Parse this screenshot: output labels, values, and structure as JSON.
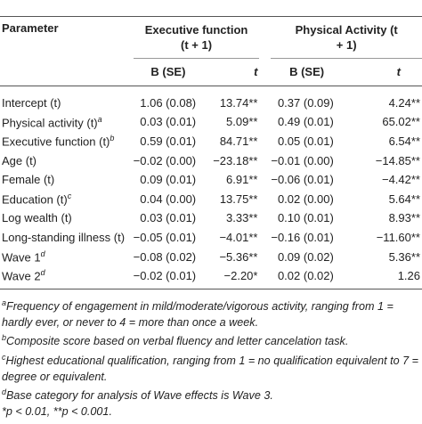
{
  "table": {
    "header": {
      "parameter": "Parameter",
      "groups": [
        "Executive function (t + 1)",
        "Physical Activity (t + 1)"
      ],
      "subcolumns": [
        "B (SE)",
        "t",
        "B (SE)",
        "t"
      ]
    },
    "rows": [
      {
        "label": "Intercept (t)",
        "note": null,
        "cells": [
          "1.06 (0.08)",
          "13.74**",
          "0.37 (0.09)",
          "4.24**"
        ]
      },
      {
        "label": "Physical activity (t)",
        "note": "a",
        "cells": [
          "0.03 (0.01)",
          "5.09**",
          "0.49 (0.01)",
          "65.02**"
        ]
      },
      {
        "label": "Executive function (t)",
        "note": "b",
        "cells": [
          "0.59 (0.01)",
          "84.71**",
          "0.05 (0.01)",
          "6.54**"
        ]
      },
      {
        "label": "Age (t)",
        "note": null,
        "cells": [
          "−0.02 (0.00)",
          "−23.18**",
          "−0.01 (0.00)",
          "−14.85**"
        ]
      },
      {
        "label": "Female (t)",
        "note": null,
        "cells": [
          "0.09 (0.01)",
          "6.91**",
          "−0.06 (0.01)",
          "−4.42**"
        ]
      },
      {
        "label": "Education (t)",
        "note": "c",
        "cells": [
          "0.04 (0.00)",
          "13.75**",
          "0.02 (0.00)",
          "5.64**"
        ]
      },
      {
        "label": "Log wealth (t)",
        "note": null,
        "cells": [
          "0.03 (0.01)",
          "3.33**",
          "0.10 (0.01)",
          "8.93**"
        ]
      },
      {
        "label": "Long-standing illness (t)",
        "note": null,
        "cells": [
          "−0.05 (0.01)",
          "−4.01**",
          "−0.16 (0.01)",
          "−11.60**"
        ]
      },
      {
        "label": "Wave 1",
        "note": "d",
        "cells": [
          "−0.08 (0.02)",
          "−5.36**",
          "0.09 (0.02)",
          "5.36**"
        ]
      },
      {
        "label": "Wave 2",
        "note": "d",
        "cells": [
          "−0.02 (0.01)",
          "−2.20*",
          "0.02 (0.02)",
          "1.26"
        ]
      }
    ],
    "footnotes": [
      {
        "mark": "a",
        "text": "Frequency of engagement in mild/moderate/vigorous activity, ranging from 1 = hardly ever, or never to 4 = more than once a week."
      },
      {
        "mark": "b",
        "text": "Composite score based on verbal fluency and letter cancelation task."
      },
      {
        "mark": "c",
        "text": "Highest educational qualification, ranging from 1 = no qualification equivalent to 7 = degree or equivalent."
      },
      {
        "mark": "d",
        "text": "Base category for analysis of Wave effects is Wave 3."
      },
      {
        "mark": null,
        "text": "*p < 0.01, **p < 0.001."
      }
    ]
  }
}
